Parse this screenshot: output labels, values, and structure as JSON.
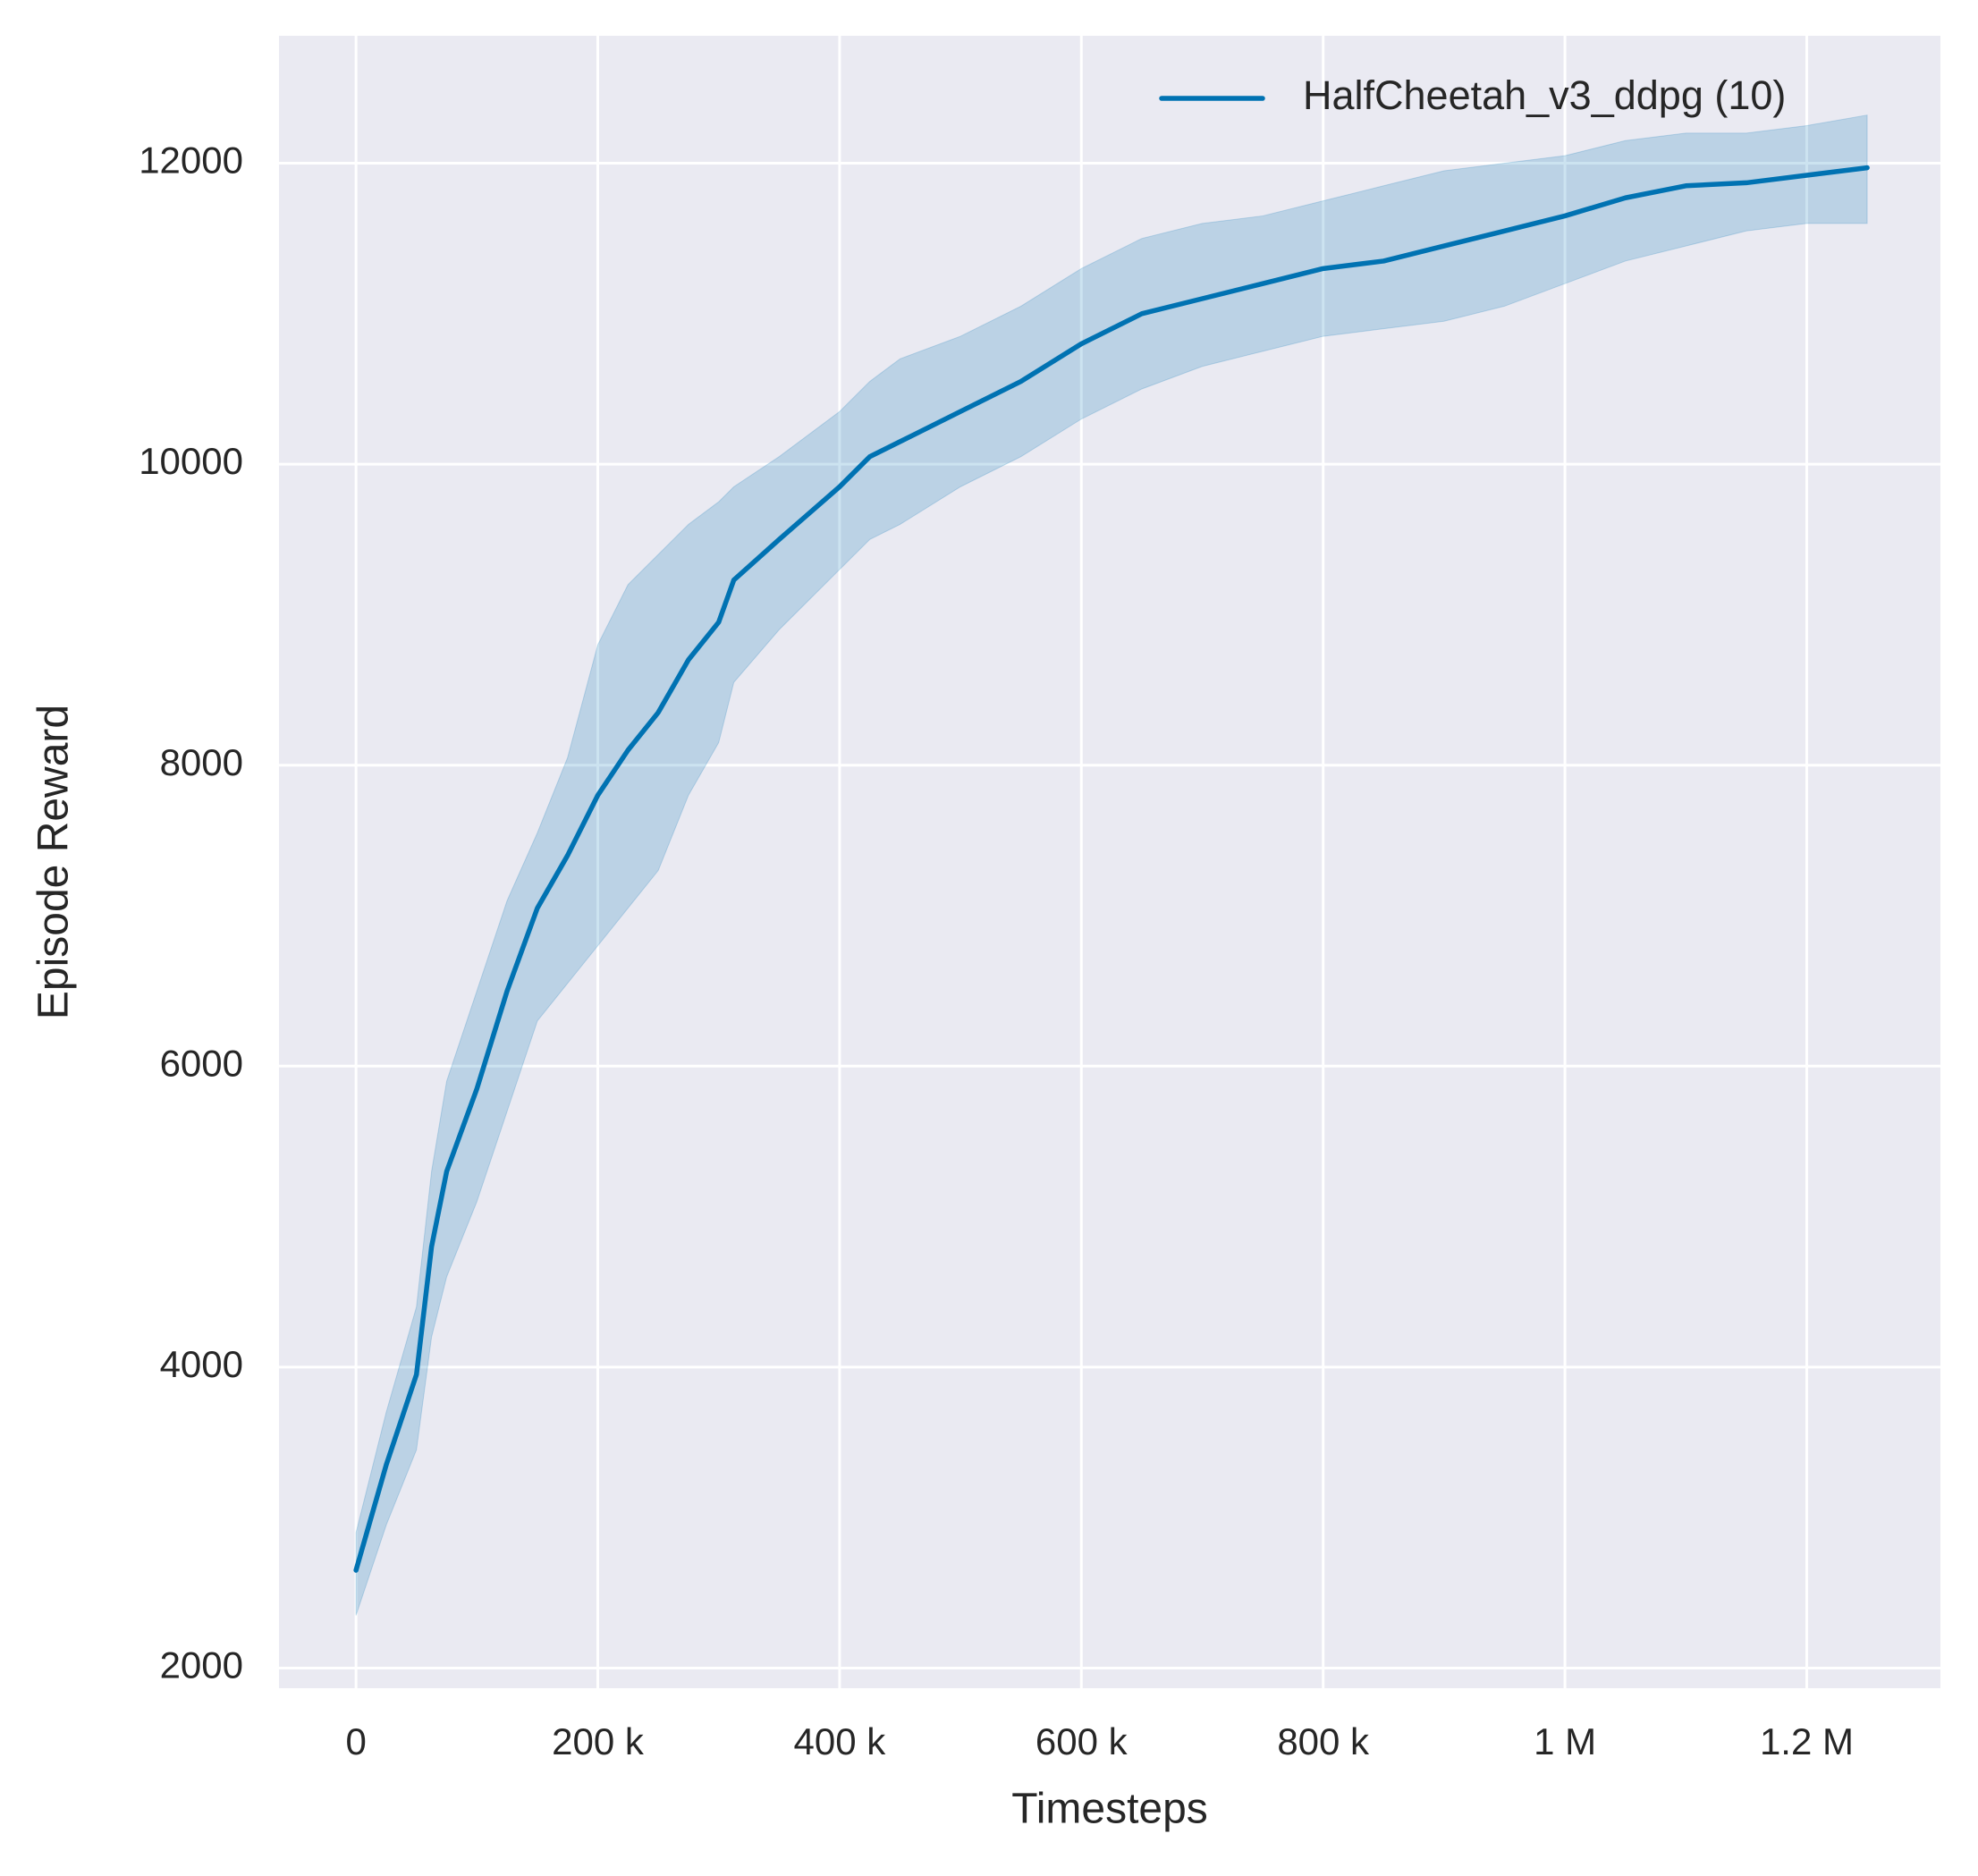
{
  "chart_data": {
    "type": "line",
    "x_label": "Timesteps",
    "y_label": "Episode Reward",
    "x": [
      0,
      25000,
      50000,
      62500,
      75000,
      100000,
      125000,
      150000,
      175000,
      200000,
      225000,
      250000,
      275000,
      300000,
      312500,
      350000,
      400000,
      425000,
      450000,
      500000,
      550000,
      600000,
      650000,
      700000,
      750000,
      800000,
      850000,
      900000,
      950000,
      1000000,
      1050000,
      1100000,
      1150000,
      1200000,
      1250000
    ],
    "series": [
      {
        "name": "HalfCheetah_v3_ddpg (10)",
        "color": "#0072b2",
        "values": [
          2650,
          3350,
          3950,
          4800,
          5300,
          5850,
          6500,
          7050,
          7400,
          7800,
          8100,
          8350,
          8700,
          8950,
          9230,
          9500,
          9850,
          10050,
          10150,
          10350,
          10550,
          10800,
          11000,
          11100,
          11200,
          11300,
          11350,
          11450,
          11550,
          11650,
          11770,
          11850,
          11870,
          11920,
          11970
        ],
        "lower": [
          2350,
          2950,
          3450,
          4200,
          4600,
          5100,
          5700,
          6300,
          6550,
          6800,
          7050,
          7300,
          7800,
          8150,
          8550,
          8900,
          9300,
          9500,
          9600,
          9850,
          10050,
          10300,
          10500,
          10650,
          10750,
          10850,
          10900,
          10950,
          11050,
          11200,
          11350,
          11450,
          11550,
          11600,
          11600
        ],
        "upper": [
          2900,
          3700,
          4400,
          5300,
          5900,
          6500,
          7100,
          7550,
          8050,
          8800,
          9200,
          9400,
          9600,
          9750,
          9850,
          10050,
          10350,
          10550,
          10700,
          10850,
          11050,
          11300,
          11500,
          11600,
          11650,
          11750,
          11850,
          11950,
          12000,
          12050,
          12150,
          12200,
          12200,
          12250,
          12320
        ]
      }
    ],
    "xlim": [
      -63700,
      1310600
    ],
    "ylim": [
      1866,
      12847
    ],
    "xticks": [
      0,
      {
        "value": 200000,
        "label": "200 k"
      },
      {
        "value": 400000,
        "label": "400 k"
      },
      {
        "value": 600000,
        "label": "600 k"
      },
      {
        "value": 800000,
        "label": "800 k"
      },
      {
        "value": 1000000,
        "label": "1 M"
      },
      {
        "value": 1200000,
        "label": "1.2 M"
      }
    ],
    "yticks": [
      2000,
      4000,
      6000,
      8000,
      10000,
      12000
    ],
    "grid": true,
    "legend": "upper right",
    "band_opacity": 0.2
  }
}
